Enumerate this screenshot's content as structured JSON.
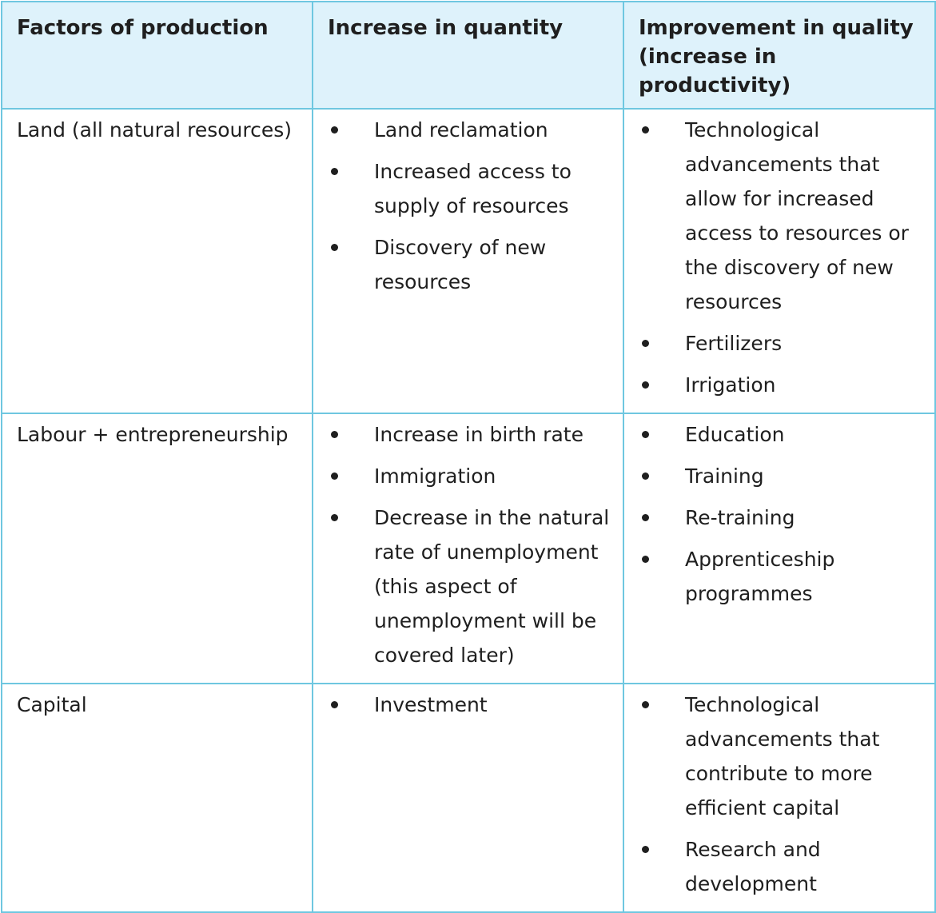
{
  "table": {
    "headers": [
      "Factors of production",
      "Increase in quantity",
      "Improvement in quality (increase in productivity)"
    ],
    "rows": [
      {
        "factor": "Land (all natural resources)",
        "quantity": [
          "Land reclamation",
          "Increased access to supply of resources",
          "Discovery of new resources"
        ],
        "quality": [
          "Technological advancements that allow for increased access to resources or the discovery of new resources",
          "Fertilizers",
          "Irrigation"
        ]
      },
      {
        "factor": "Labour + entrepreneurship",
        "quantity": [
          "Increase in birth rate",
          "Immigration",
          "Decrease in the natural rate of unemployment (this aspect of unemployment will be covered later)"
        ],
        "quality": [
          "Education",
          "Training",
          "Re-training",
          "Apprenticeship programmes"
        ]
      },
      {
        "factor": "Capital",
        "quantity": [
          "Investment"
        ],
        "quality": [
          "Technological advancements that contribute to more efficient capital",
          "Research and development"
        ]
      }
    ]
  },
  "colors": {
    "border": "#6fc7e0",
    "header_background": "#def2fb",
    "text": "#1f1f1f"
  }
}
